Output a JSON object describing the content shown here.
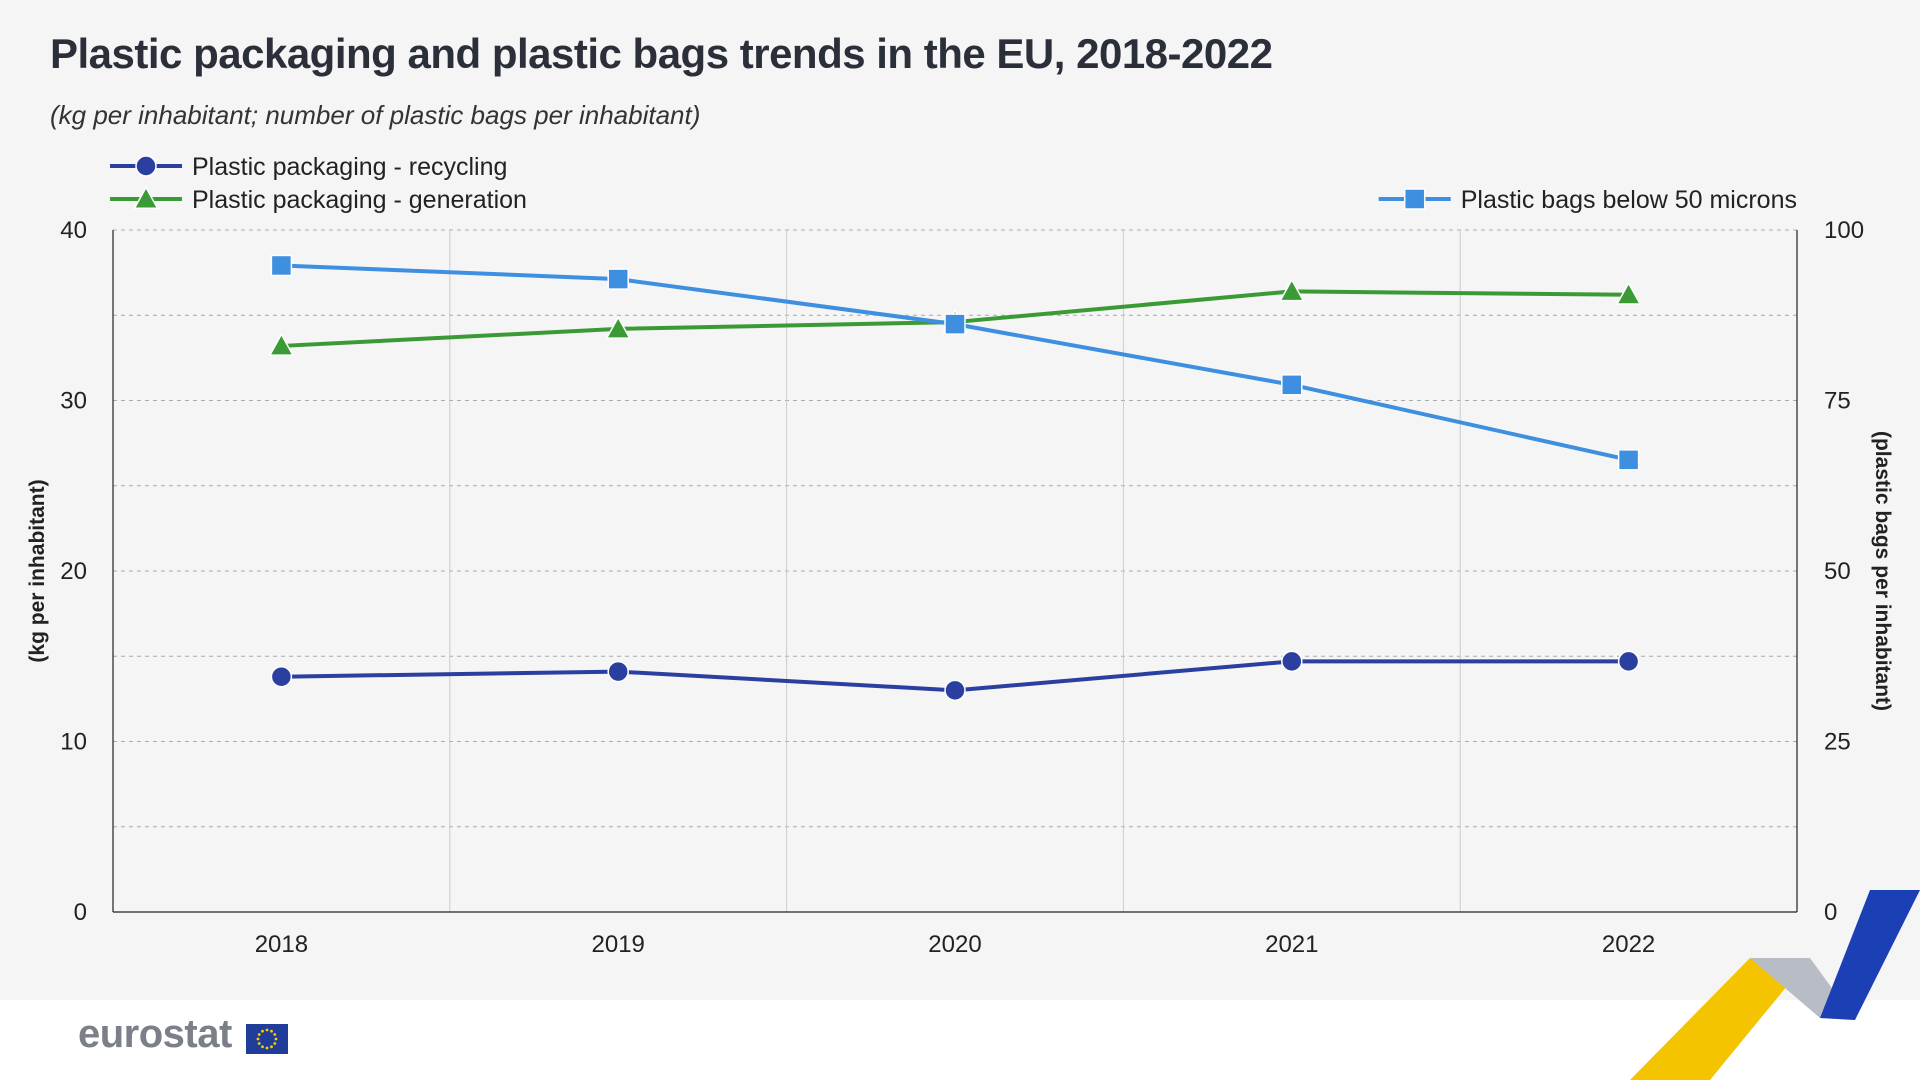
{
  "header": {
    "title": "Plastic packaging and plastic bags trends in the EU, 2018-2022",
    "subtitle": "(kg per inhabitant; number of plastic bags per inhabitant)"
  },
  "footer": {
    "logo_text": "eurostat"
  },
  "chart_data": {
    "type": "line",
    "x": [
      "2018",
      "2019",
      "2020",
      "2021",
      "2022"
    ],
    "series": [
      {
        "name": "Plastic packaging - recycling",
        "axis": "left",
        "marker": "circle",
        "color": "#2a3fa0",
        "values": [
          13.8,
          14.1,
          13.0,
          14.7,
          14.7
        ]
      },
      {
        "name": "Plastic packaging - generation",
        "axis": "left",
        "marker": "triangle",
        "color": "#3a9b35",
        "values": [
          33.2,
          34.2,
          34.6,
          36.4,
          36.2
        ]
      },
      {
        "name": "Plastic bags below 50 microns",
        "axis": "right",
        "marker": "square",
        "color": "#3f8fe0",
        "values": [
          94.8,
          92.8,
          86.2,
          77.3,
          66.3
        ]
      }
    ],
    "y_left": {
      "label": "(kg per inhabitant)",
      "ylim": [
        0,
        40
      ],
      "ticks": [
        0,
        10,
        20,
        30,
        40
      ]
    },
    "y_right": {
      "label": "(plastic bags per inhabitant)",
      "ylim": [
        0,
        100
      ],
      "ticks": [
        0,
        25,
        50,
        75,
        100
      ]
    },
    "grid": true,
    "legend": "top"
  }
}
